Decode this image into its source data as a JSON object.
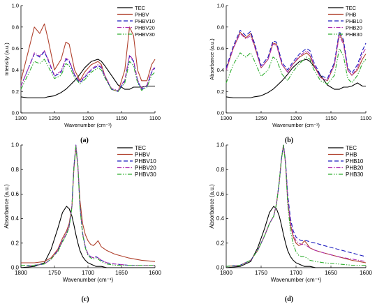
{
  "colors": {
    "axis": "#000000",
    "series": [
      "#000000",
      "#b0412d",
      "#1b1bbf",
      "#b02fb0",
      "#2fae2f"
    ]
  },
  "chart_data": [
    {
      "type": "line",
      "panel_label": "(a)",
      "xlabel": "Wavenumber (cm⁻¹)",
      "ylabel": "Intensity (a.u.)",
      "xlim": [
        1300,
        1100
      ],
      "ylim": [
        0.0,
        1.0
      ],
      "x_reversed": true,
      "xticks": [
        1300,
        1250,
        1200,
        1150,
        1100
      ],
      "yticks": [
        0.0,
        0.2,
        0.4,
        0.6,
        0.8,
        1.0
      ],
      "ytick_labels": [
        "0.0",
        "0.2",
        "0.4",
        "0.6",
        "0.8",
        "1.0"
      ],
      "legend_position": "top-right",
      "x": [
        1300,
        1290,
        1280,
        1272,
        1265,
        1260,
        1250,
        1240,
        1233,
        1228,
        1220,
        1212,
        1205,
        1195,
        1185,
        1180,
        1175,
        1165,
        1155,
        1145,
        1138,
        1132,
        1126,
        1120,
        1112,
        1105,
        1100
      ],
      "series": [
        {
          "name": "TEC",
          "style": "solid",
          "values": [
            0.15,
            0.14,
            0.14,
            0.14,
            0.14,
            0.15,
            0.16,
            0.19,
            0.22,
            0.25,
            0.3,
            0.36,
            0.42,
            0.48,
            0.5,
            0.48,
            0.44,
            0.35,
            0.26,
            0.22,
            0.22,
            0.24,
            0.24,
            0.24,
            0.25,
            0.25,
            0.25
          ]
        },
        {
          "name": "PHBV",
          "style": "solid",
          "values": [
            0.3,
            0.55,
            0.8,
            0.74,
            0.83,
            0.7,
            0.4,
            0.5,
            0.66,
            0.64,
            0.4,
            0.3,
            0.38,
            0.45,
            0.48,
            0.45,
            0.35,
            0.22,
            0.2,
            0.4,
            0.8,
            0.72,
            0.4,
            0.3,
            0.3,
            0.45,
            0.5
          ]
        },
        {
          "name": "PHBV10",
          "style": "dashed",
          "values": [
            0.25,
            0.4,
            0.55,
            0.52,
            0.57,
            0.5,
            0.34,
            0.38,
            0.5,
            0.48,
            0.35,
            0.28,
            0.33,
            0.4,
            0.44,
            0.42,
            0.34,
            0.22,
            0.2,
            0.3,
            0.53,
            0.48,
            0.3,
            0.22,
            0.25,
            0.38,
            0.42
          ]
        },
        {
          "name": "PHBV20",
          "style": "dashdot",
          "values": [
            0.25,
            0.4,
            0.56,
            0.53,
            0.58,
            0.51,
            0.35,
            0.39,
            0.51,
            0.49,
            0.36,
            0.29,
            0.34,
            0.41,
            0.45,
            0.43,
            0.35,
            0.23,
            0.21,
            0.31,
            0.54,
            0.49,
            0.31,
            0.23,
            0.26,
            0.39,
            0.43
          ]
        },
        {
          "name": "PHBV30",
          "style": "dashdotdot",
          "values": [
            0.22,
            0.35,
            0.48,
            0.46,
            0.5,
            0.44,
            0.32,
            0.35,
            0.46,
            0.44,
            0.33,
            0.27,
            0.31,
            0.38,
            0.42,
            0.4,
            0.33,
            0.22,
            0.2,
            0.28,
            0.48,
            0.44,
            0.28,
            0.21,
            0.24,
            0.35,
            0.38
          ]
        }
      ]
    },
    {
      "type": "line",
      "panel_label": "(b)",
      "xlabel": "Wavenumber (cm⁻¹)",
      "ylabel": "Absorbance (a.u.)",
      "xlim": [
        1300,
        1100
      ],
      "ylim": [
        0.0,
        1.0
      ],
      "x_reversed": true,
      "xticks": [
        1300,
        1250,
        1200,
        1150,
        1100
      ],
      "yticks": [
        0.0,
        0.2,
        0.4,
        0.6,
        0.8,
        1.0
      ],
      "ytick_labels": [
        "0.0",
        "0.2",
        "0.4",
        "0.6",
        "0.8",
        "1.0"
      ],
      "legend_position": "top-right",
      "x": [
        1300,
        1290,
        1280,
        1272,
        1265,
        1260,
        1250,
        1240,
        1233,
        1228,
        1220,
        1212,
        1205,
        1195,
        1185,
        1180,
        1175,
        1165,
        1155,
        1145,
        1138,
        1132,
        1126,
        1120,
        1112,
        1105,
        1100
      ],
      "series": [
        {
          "name": "TEC",
          "style": "solid",
          "values": [
            0.15,
            0.14,
            0.14,
            0.14,
            0.14,
            0.15,
            0.16,
            0.19,
            0.22,
            0.25,
            0.3,
            0.36,
            0.42,
            0.48,
            0.5,
            0.48,
            0.44,
            0.35,
            0.26,
            0.22,
            0.22,
            0.24,
            0.24,
            0.25,
            0.28,
            0.25,
            0.25
          ]
        },
        {
          "name": "PHB",
          "style": "solid",
          "values": [
            0.4,
            0.6,
            0.75,
            0.7,
            0.74,
            0.64,
            0.42,
            0.5,
            0.65,
            0.64,
            0.45,
            0.38,
            0.45,
            0.52,
            0.56,
            0.53,
            0.45,
            0.33,
            0.3,
            0.45,
            0.74,
            0.66,
            0.4,
            0.35,
            0.4,
            0.5,
            0.55
          ]
        },
        {
          "name": "PHB10",
          "style": "dashed",
          "values": [
            0.42,
            0.62,
            0.77,
            0.72,
            0.76,
            0.66,
            0.44,
            0.52,
            0.67,
            0.66,
            0.47,
            0.4,
            0.47,
            0.55,
            0.6,
            0.58,
            0.48,
            0.35,
            0.32,
            0.47,
            0.76,
            0.68,
            0.42,
            0.37,
            0.45,
            0.58,
            0.65
          ]
        },
        {
          "name": "PHB20",
          "style": "dashdot",
          "values": [
            0.4,
            0.6,
            0.74,
            0.69,
            0.72,
            0.63,
            0.42,
            0.5,
            0.64,
            0.63,
            0.45,
            0.38,
            0.45,
            0.53,
            0.58,
            0.55,
            0.46,
            0.33,
            0.3,
            0.45,
            0.72,
            0.64,
            0.4,
            0.35,
            0.42,
            0.55,
            0.6
          ]
        },
        {
          "name": "PHB30",
          "style": "dashdotdot",
          "values": [
            0.28,
            0.45,
            0.56,
            0.52,
            0.56,
            0.49,
            0.34,
            0.4,
            0.52,
            0.5,
            0.36,
            0.3,
            0.38,
            0.46,
            0.52,
            0.5,
            0.41,
            0.3,
            0.27,
            0.35,
            0.6,
            0.53,
            0.32,
            0.28,
            0.35,
            0.46,
            0.5
          ]
        }
      ]
    },
    {
      "type": "line",
      "panel_label": "(c)",
      "xlabel": "Wavenumber (cm⁻¹)",
      "ylabel": "Absorbance (a.u.)",
      "xlim": [
        1800,
        1600
      ],
      "ylim": [
        0.0,
        1.0
      ],
      "x_reversed": true,
      "xticks": [
        1800,
        1750,
        1700,
        1650,
        1600
      ],
      "yticks": [
        0.0,
        0.2,
        0.4,
        0.6,
        0.8,
        1.0
      ],
      "ytick_labels": [
        "0.0",
        "0.2",
        "0.4",
        "0.6",
        "0.8",
        "1.0"
      ],
      "legend_position": "top-right",
      "x": [
        1800,
        1780,
        1765,
        1755,
        1745,
        1738,
        1732,
        1728,
        1724,
        1721,
        1718,
        1715,
        1712,
        1708,
        1704,
        1700,
        1696,
        1692,
        1688,
        1685,
        1680,
        1672,
        1660,
        1640,
        1620,
        1600
      ],
      "series": [
        {
          "name": "TEC",
          "style": "solid",
          "values": [
            0.0,
            0.01,
            0.04,
            0.15,
            0.32,
            0.45,
            0.5,
            0.48,
            0.42,
            0.35,
            0.27,
            0.2,
            0.14,
            0.09,
            0.06,
            0.04,
            0.03,
            0.02,
            0.01,
            0.01,
            0.01,
            0.0,
            0.0,
            0.0,
            0.0,
            0.0
          ]
        },
        {
          "name": "PHBV",
          "style": "solid",
          "values": [
            0.04,
            0.04,
            0.05,
            0.08,
            0.15,
            0.24,
            0.3,
            0.36,
            0.5,
            0.8,
            0.98,
            0.82,
            0.55,
            0.36,
            0.27,
            0.22,
            0.19,
            0.18,
            0.2,
            0.22,
            0.17,
            0.14,
            0.11,
            0.08,
            0.06,
            0.05
          ]
        },
        {
          "name": "PHBV10",
          "style": "dashed",
          "values": [
            0.02,
            0.02,
            0.03,
            0.07,
            0.14,
            0.22,
            0.28,
            0.34,
            0.5,
            0.82,
            1.0,
            0.83,
            0.5,
            0.28,
            0.17,
            0.11,
            0.09,
            0.08,
            0.09,
            0.08,
            0.06,
            0.04,
            0.03,
            0.02,
            0.02,
            0.02
          ]
        },
        {
          "name": "PHBV20",
          "style": "dashdot",
          "values": [
            0.02,
            0.02,
            0.03,
            0.07,
            0.14,
            0.22,
            0.28,
            0.34,
            0.5,
            0.82,
            1.0,
            0.83,
            0.5,
            0.28,
            0.17,
            0.11,
            0.09,
            0.08,
            0.09,
            0.08,
            0.06,
            0.04,
            0.03,
            0.02,
            0.02,
            0.02
          ]
        },
        {
          "name": "PHBV30",
          "style": "dashdotdot",
          "values": [
            0.02,
            0.02,
            0.03,
            0.07,
            0.13,
            0.21,
            0.27,
            0.33,
            0.49,
            0.81,
            0.99,
            0.82,
            0.49,
            0.27,
            0.16,
            0.1,
            0.08,
            0.07,
            0.08,
            0.07,
            0.05,
            0.03,
            0.02,
            0.02,
            0.02,
            0.02
          ]
        }
      ]
    },
    {
      "type": "line",
      "panel_label": "(d)",
      "xlabel": "Wavenumber (cm⁻¹)",
      "ylabel": "Absorbance (a.u.)",
      "xlim": [
        1800,
        1600
      ],
      "ylim": [
        0.0,
        1.0
      ],
      "x_reversed": true,
      "xticks": [
        1800,
        1750,
        1700,
        1650,
        1600
      ],
      "yticks": [
        0.0,
        0.2,
        0.4,
        0.6,
        0.8,
        1.0
      ],
      "ytick_labels": [
        "0.0",
        "0.2",
        "0.4",
        "0.6",
        "0.8",
        "1.0"
      ],
      "legend_position": "top-right",
      "x": [
        1800,
        1780,
        1765,
        1755,
        1745,
        1738,
        1732,
        1728,
        1724,
        1721,
        1718,
        1715,
        1712,
        1708,
        1704,
        1700,
        1696,
        1692,
        1688,
        1685,
        1680,
        1672,
        1660,
        1640,
        1620,
        1600
      ],
      "series": [
        {
          "name": "TEC",
          "style": "solid",
          "values": [
            0.0,
            0.01,
            0.05,
            0.16,
            0.32,
            0.45,
            0.5,
            0.48,
            0.42,
            0.35,
            0.27,
            0.2,
            0.14,
            0.09,
            0.06,
            0.04,
            0.03,
            0.02,
            0.01,
            0.01,
            0.01,
            0.0,
            0.0,
            0.0,
            0.0,
            0.0
          ]
        },
        {
          "name": "PHB",
          "style": "solid",
          "values": [
            0.01,
            0.02,
            0.06,
            0.14,
            0.26,
            0.36,
            0.42,
            0.52,
            0.7,
            0.88,
            1.0,
            0.85,
            0.55,
            0.35,
            0.25,
            0.2,
            0.18,
            0.19,
            0.22,
            0.2,
            0.16,
            0.14,
            0.12,
            0.09,
            0.06,
            0.04
          ]
        },
        {
          "name": "PHB10",
          "style": "dashed",
          "values": [
            0.01,
            0.02,
            0.06,
            0.14,
            0.26,
            0.36,
            0.42,
            0.52,
            0.7,
            0.88,
            1.0,
            0.87,
            0.6,
            0.4,
            0.3,
            0.25,
            0.23,
            0.22,
            0.22,
            0.22,
            0.21,
            0.2,
            0.18,
            0.15,
            0.12,
            0.09
          ]
        },
        {
          "name": "PHB20",
          "style": "dashdot",
          "values": [
            0.01,
            0.02,
            0.06,
            0.14,
            0.26,
            0.36,
            0.42,
            0.52,
            0.7,
            0.88,
            1.0,
            0.86,
            0.57,
            0.37,
            0.27,
            0.22,
            0.2,
            0.19,
            0.19,
            0.18,
            0.16,
            0.14,
            0.12,
            0.09,
            0.07,
            0.05
          ]
        },
        {
          "name": "PHB30",
          "style": "dashdotdot",
          "values": [
            0.01,
            0.02,
            0.06,
            0.14,
            0.26,
            0.36,
            0.42,
            0.52,
            0.7,
            0.88,
            1.0,
            0.84,
            0.52,
            0.3,
            0.19,
            0.13,
            0.1,
            0.09,
            0.09,
            0.08,
            0.06,
            0.05,
            0.04,
            0.03,
            0.02,
            0.02
          ]
        }
      ]
    }
  ]
}
